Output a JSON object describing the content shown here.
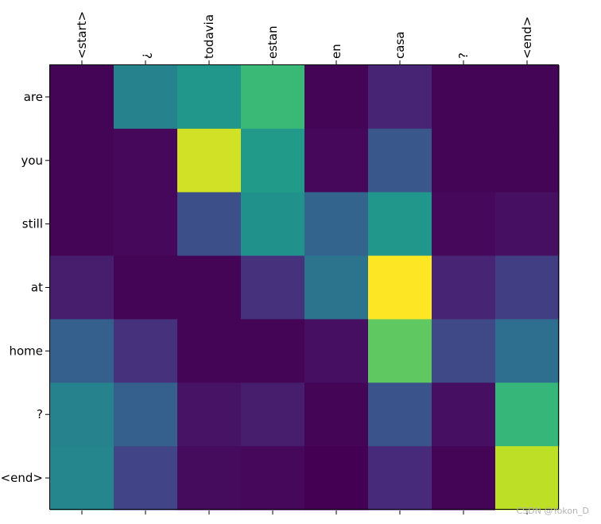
{
  "chart_data": {
    "type": "heatmap",
    "colormap": "viridis",
    "x_tick_labels": [
      "<start>",
      "¿",
      "todavia",
      "estan",
      "en",
      "casa",
      "?",
      "<end>"
    ],
    "y_tick_labels": [
      "are",
      "you",
      "still",
      "at",
      "home",
      "?",
      "<end>"
    ],
    "value_range": [
      0,
      1
    ],
    "values": [
      [
        0.01,
        0.44,
        0.52,
        0.67,
        0.01,
        0.1,
        0.01,
        0.01
      ],
      [
        0.01,
        0.02,
        0.93,
        0.54,
        0.02,
        0.27,
        0.01,
        0.01
      ],
      [
        0.01,
        0.02,
        0.24,
        0.5,
        0.32,
        0.52,
        0.02,
        0.04
      ],
      [
        0.08,
        0.01,
        0.01,
        0.14,
        0.38,
        1.0,
        0.1,
        0.18
      ],
      [
        0.3,
        0.14,
        0.01,
        0.01,
        0.04,
        0.75,
        0.22,
        0.36
      ],
      [
        0.44,
        0.3,
        0.05,
        0.08,
        0.01,
        0.26,
        0.04,
        0.66
      ],
      [
        0.46,
        0.2,
        0.03,
        0.02,
        0.0,
        0.12,
        0.01,
        0.9
      ]
    ]
  },
  "watermark": "CSDN @Yokon_D"
}
